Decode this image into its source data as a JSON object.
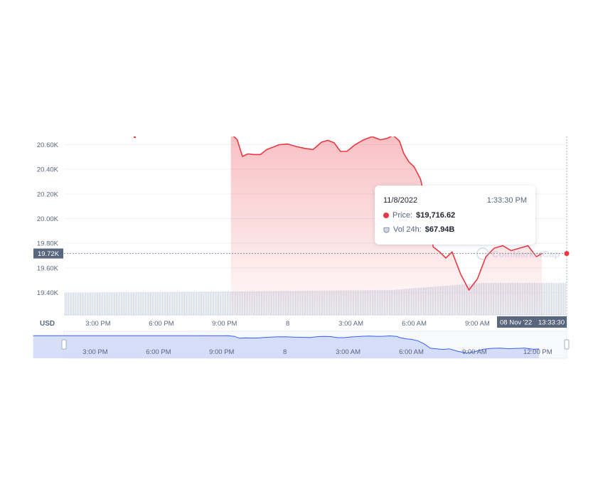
{
  "chart_data": {
    "type": "area",
    "currency_label": "USD",
    "y_ticks": [
      "19.40K",
      "19.60K",
      "19.80K",
      "20.00K",
      "20.20K",
      "20.40K",
      "20.60K"
    ],
    "y_tick_values": [
      19400,
      19600,
      19800,
      20000,
      20200,
      20400,
      20600
    ],
    "ylim": [
      19230,
      20670
    ],
    "x_ticks": [
      "3:00 PM",
      "6:00 PM",
      "9:00 PM",
      "8",
      "3:00 AM",
      "6:00 AM",
      "9:00 AM"
    ],
    "x_tick_hours": [
      15,
      18,
      21,
      24,
      27,
      30,
      33
    ],
    "xlim_hours": [
      12.05,
      36.06
    ],
    "navigator_ticks": [
      "3:00 PM",
      "6:00 PM",
      "9:00 PM",
      "8",
      "3:00 AM",
      "6:00 AM",
      "9:00 AM",
      "12:00 PM"
    ],
    "navigator_tick_hours": [
      15,
      18,
      21,
      24,
      27,
      30,
      33,
      36
    ],
    "current_price_label": "19.72K",
    "current_price": 19716.62,
    "crosshair_date_label": "08 Nov '22",
    "crosshair_time_label": "13:33:30",
    "watermark": "CoinMarketCap",
    "colors": {
      "line": "#ea3943",
      "fill": "#ea3943",
      "volume": "#cfd6e4",
      "navigator": "#c9d3f5",
      "navigator_line": "#3861fb"
    },
    "series": [
      {
        "name": "Price",
        "x_hours": [
          21.3,
          21.6,
          21.85,
          22.1,
          22.4,
          22.7,
          23.0,
          23.3,
          23.6,
          24.0,
          24.4,
          24.8,
          25.2,
          25.6,
          25.9,
          26.2,
          26.5,
          26.8,
          27.2,
          27.6,
          28.0,
          28.4,
          28.7,
          29.0,
          29.3,
          29.5,
          29.75,
          30.0,
          30.3,
          30.6,
          30.9,
          31.2,
          31.5,
          31.8,
          32.2,
          32.6,
          33.0,
          33.4,
          33.8,
          34.2,
          34.6,
          35.0,
          35.4,
          35.8,
          36.06
        ],
        "values": [
          20690,
          20640,
          20505,
          20525,
          20520,
          20520,
          20560,
          20580,
          20600,
          20605,
          20585,
          20570,
          20560,
          20620,
          20635,
          20615,
          20545,
          20545,
          20600,
          20640,
          20665,
          20640,
          20650,
          20675,
          20630,
          20530,
          20460,
          20420,
          20320,
          20090,
          19770,
          19730,
          19680,
          19730,
          19550,
          19420,
          19510,
          19690,
          19760,
          19780,
          19740,
          19760,
          19780,
          19690,
          19716.62
        ]
      }
    ],
    "tooltip": {
      "date": "11/8/2022",
      "time": "1:33:30 PM",
      "price_label": "Price:",
      "price_value": "$19,716.62",
      "volume_label": "Vol 24h:",
      "volume_value": "$67.94B"
    }
  }
}
